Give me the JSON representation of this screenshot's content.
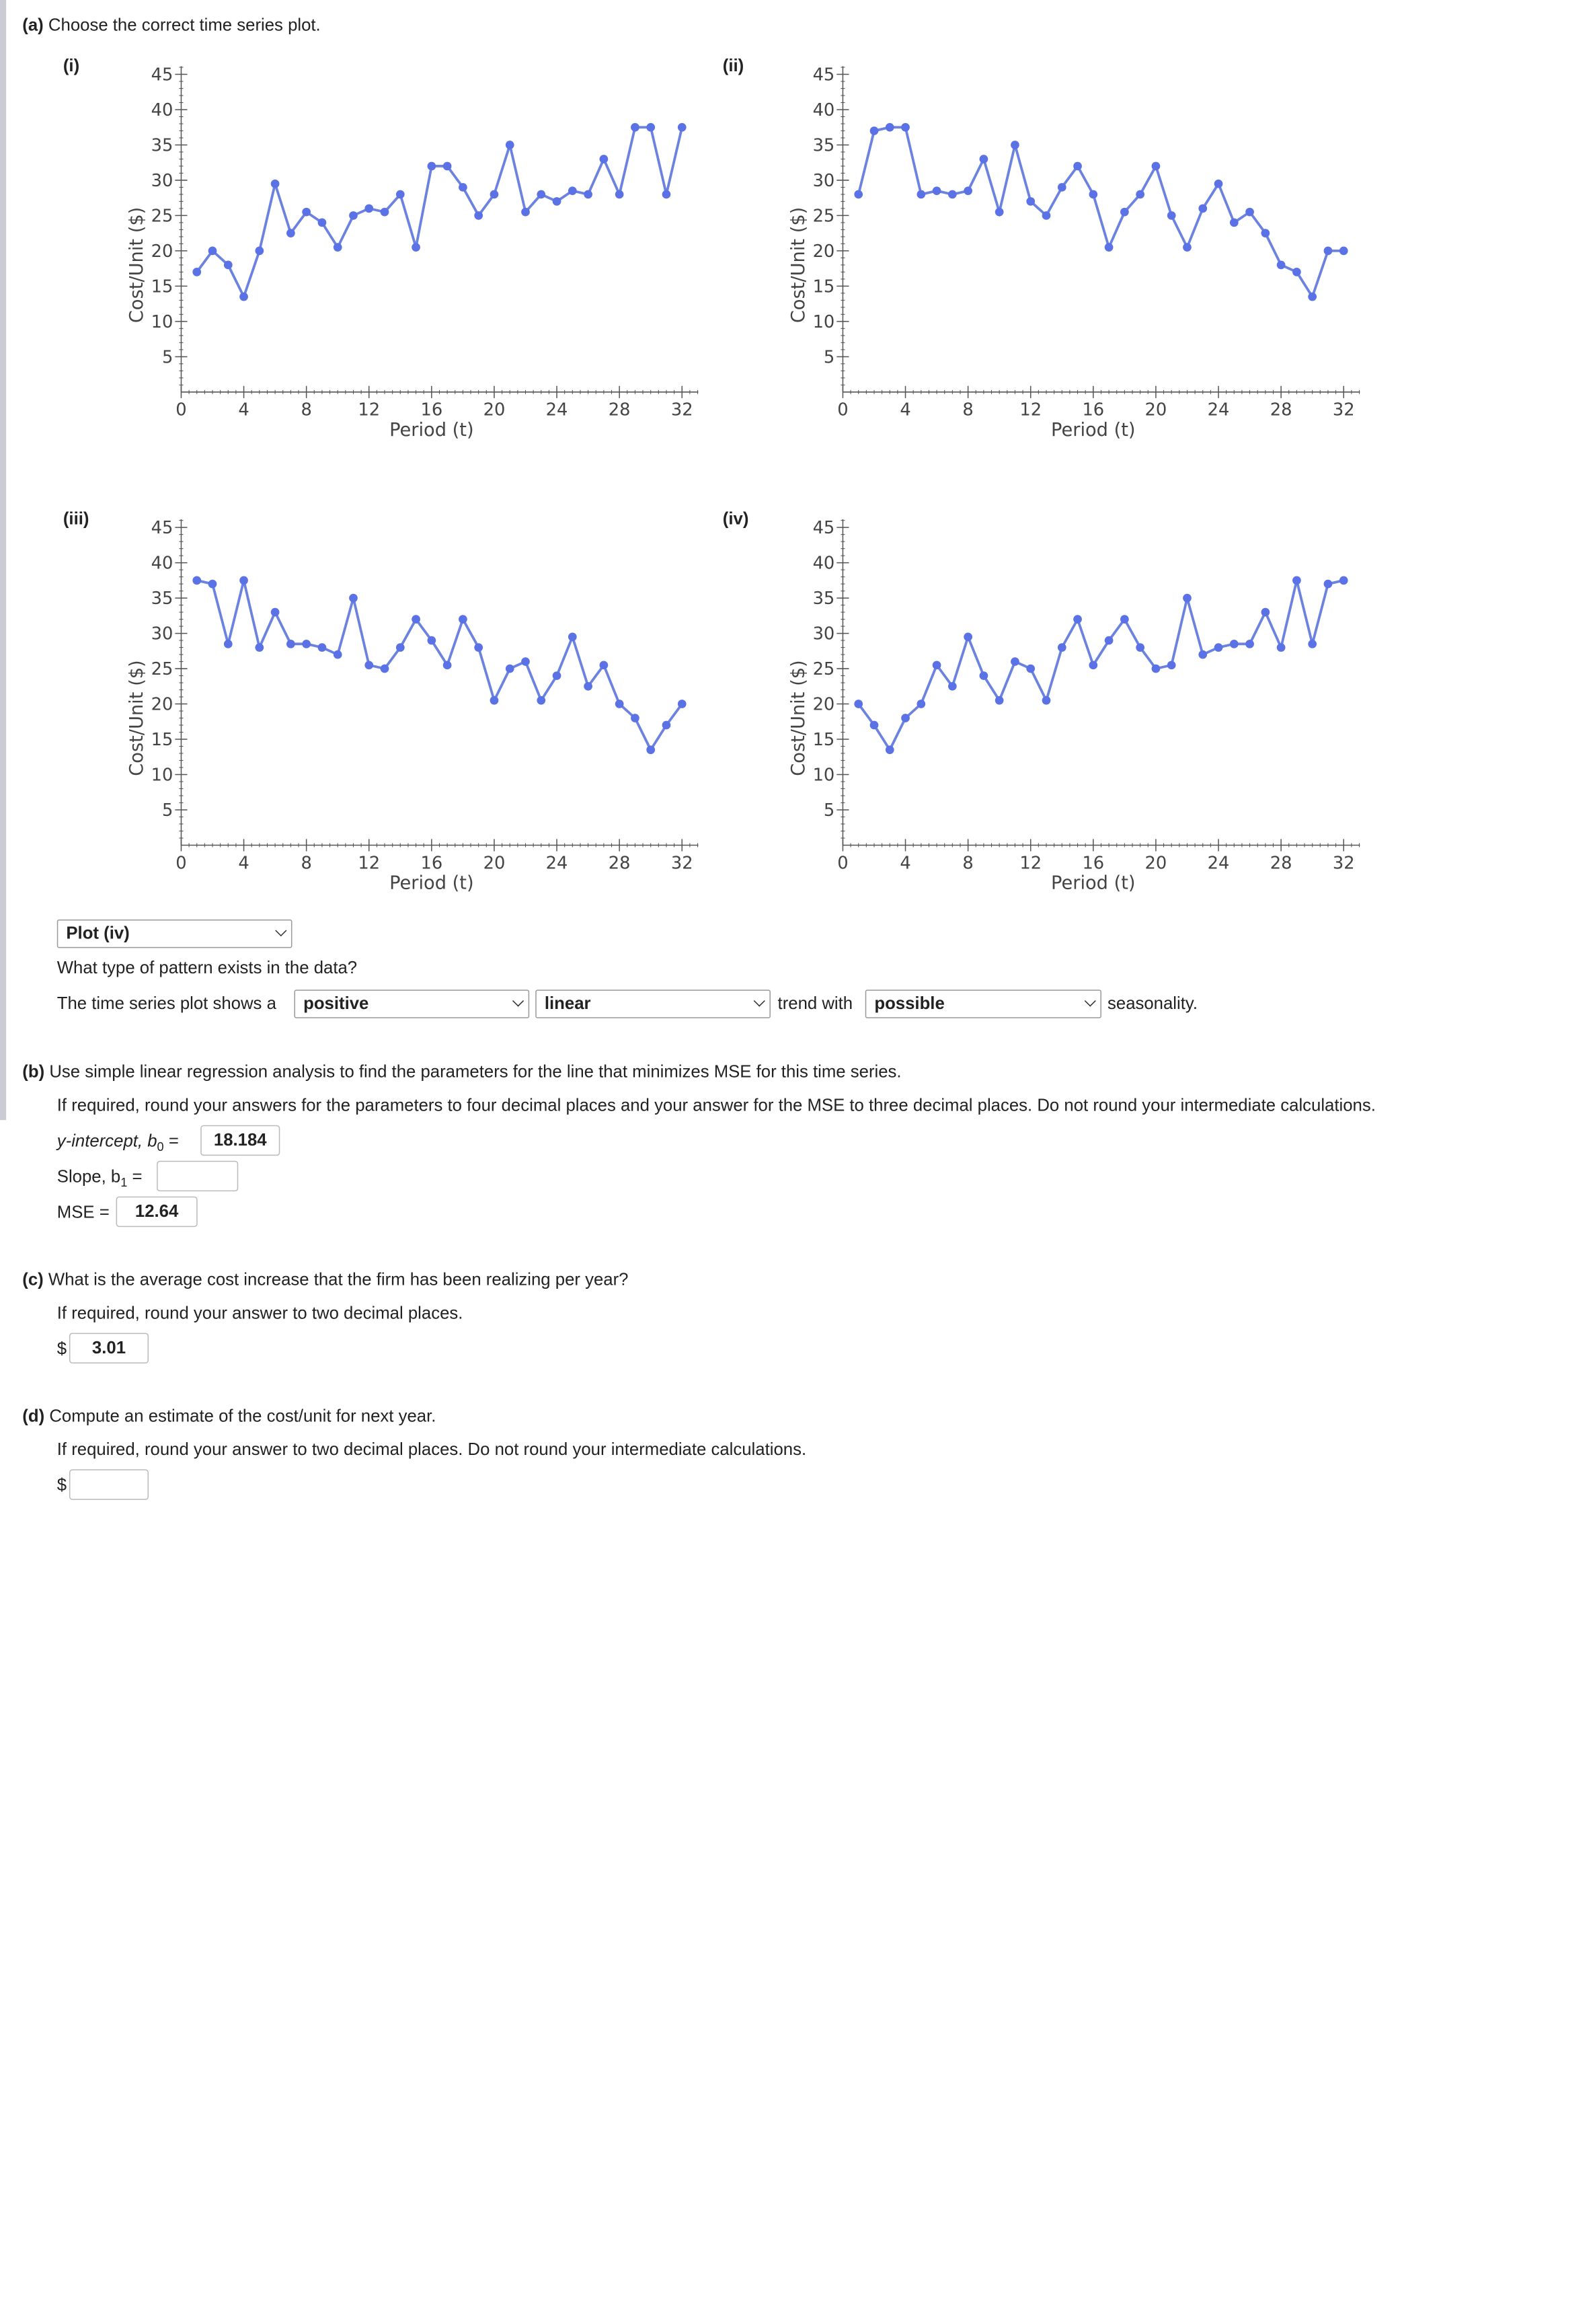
{
  "part_a": {
    "prompt_label": "(a)",
    "prompt": "Choose the correct time series plot."
  },
  "plots": [
    {
      "label": "(i)",
      "ylabel": "Cost/Unit ($)",
      "xlabel": "Period (t)"
    },
    {
      "label": "(ii)",
      "ylabel": "Cost/Unit ($)",
      "xlabel": "Period (t)"
    },
    {
      "label": "(iii)",
      "ylabel": "Cost/Unit ($)",
      "xlabel": "Period (t)"
    },
    {
      "label": "(iv)",
      "ylabel": "Cost/Unit ($)",
      "xlabel": "Period (t)"
    }
  ],
  "chart_data": [
    {
      "type": "line",
      "name": "(i)",
      "xlabel": "Period (t)",
      "ylabel": "Cost/Unit ($)",
      "xlim": [
        0,
        33
      ],
      "ylim": [
        0,
        45
      ],
      "xticks": [
        "0",
        "4",
        "8",
        "12",
        "16",
        "20",
        "24",
        "28",
        "32"
      ],
      "yticks": [
        "5",
        "10",
        "15",
        "20",
        "25",
        "30",
        "35",
        "40",
        "45"
      ],
      "x": [
        1,
        2,
        3,
        4,
        5,
        6,
        7,
        8,
        9,
        10,
        11,
        12,
        13,
        14,
        15,
        16,
        17,
        18,
        19,
        20,
        21,
        22,
        23,
        24,
        25,
        26,
        27,
        28,
        29,
        30,
        31,
        32
      ],
      "y": [
        17,
        20,
        18,
        13.5,
        20,
        29.5,
        22.5,
        25.5,
        24,
        20.5,
        25,
        26,
        25.5,
        28,
        20.5,
        32,
        32,
        29,
        25,
        28,
        35,
        25.5,
        28,
        27,
        28.5,
        28,
        33,
        28,
        37.5,
        37.5,
        28,
        37.5
      ]
    },
    {
      "type": "line",
      "name": "(ii)",
      "xlabel": "Period (t)",
      "ylabel": "Cost/Unit ($)",
      "xlim": [
        0,
        33
      ],
      "ylim": [
        0,
        45
      ],
      "xticks": [
        "0",
        "4",
        "8",
        "12",
        "16",
        "20",
        "24",
        "28",
        "32"
      ],
      "yticks": [
        "5",
        "10",
        "15",
        "20",
        "25",
        "30",
        "35",
        "40",
        "45"
      ],
      "x": [
        1,
        2,
        3,
        4,
        5,
        6,
        7,
        8,
        9,
        10,
        11,
        12,
        13,
        14,
        15,
        16,
        17,
        18,
        19,
        20,
        21,
        22,
        23,
        24,
        25,
        26,
        27,
        28,
        29,
        30,
        31,
        32
      ],
      "y": [
        28,
        37,
        37.5,
        37.5,
        28,
        28.5,
        28,
        28.5,
        33,
        25.5,
        35,
        27,
        25,
        29,
        32,
        28,
        20.5,
        25.5,
        28,
        32,
        25,
        20.5,
        26,
        29.5,
        24,
        25.5,
        22.5,
        18,
        17,
        13.5,
        20,
        20
      ]
    },
    {
      "type": "line",
      "name": "(iii)",
      "xlabel": "Period (t)",
      "ylabel": "Cost/Unit ($)",
      "xlim": [
        0,
        33
      ],
      "ylim": [
        0,
        45
      ],
      "xticks": [
        "0",
        "4",
        "8",
        "12",
        "16",
        "20",
        "24",
        "28",
        "32"
      ],
      "yticks": [
        "5",
        "10",
        "15",
        "20",
        "25",
        "30",
        "35",
        "40",
        "45"
      ],
      "x": [
        1,
        2,
        3,
        4,
        5,
        6,
        7,
        8,
        9,
        10,
        11,
        12,
        13,
        14,
        15,
        16,
        17,
        18,
        19,
        20,
        21,
        22,
        23,
        24,
        25,
        26,
        27,
        28,
        29,
        30,
        31,
        32
      ],
      "y": [
        37.5,
        37,
        28.5,
        37.5,
        28,
        33,
        28.5,
        28.5,
        28,
        27,
        35,
        25.5,
        25,
        28,
        32,
        29,
        25.5,
        32,
        28,
        20.5,
        25,
        26,
        20.5,
        24,
        29.5,
        22.5,
        25.5,
        20,
        18,
        13.5,
        17,
        20
      ]
    },
    {
      "type": "line",
      "name": "(iv)",
      "xlabel": "Period (t)",
      "ylabel": "Cost/Unit ($)",
      "xlim": [
        0,
        33
      ],
      "ylim": [
        0,
        45
      ],
      "xticks": [
        "0",
        "4",
        "8",
        "12",
        "16",
        "20",
        "24",
        "28",
        "32"
      ],
      "yticks": [
        "5",
        "10",
        "15",
        "20",
        "25",
        "30",
        "35",
        "40",
        "45"
      ],
      "x": [
        1,
        2,
        3,
        4,
        5,
        6,
        7,
        8,
        9,
        10,
        11,
        12,
        13,
        14,
        15,
        16,
        17,
        18,
        19,
        20,
        21,
        22,
        23,
        24,
        25,
        26,
        27,
        28,
        29,
        30,
        31,
        32
      ],
      "y": [
        20,
        17,
        13.5,
        18,
        20,
        25.5,
        22.5,
        29.5,
        24,
        20.5,
        26,
        25,
        20.5,
        28,
        32,
        25.5,
        29,
        32,
        28,
        25,
        25.5,
        35,
        27,
        28,
        28.5,
        28.5,
        33,
        28,
        37.5,
        28.5,
        37,
        37.5
      ]
    }
  ],
  "colors": {
    "line": "#6b82e0",
    "marker": "#5a72e6",
    "axis": "#555555"
  },
  "selected_plot": "Plot (iv)",
  "pattern": {
    "question": "What type of pattern exists in the data?",
    "lead": "The time series plot shows a",
    "trend_dir": "positive",
    "trend_type": "linear",
    "mid": "trend with",
    "seasonality": "possible",
    "tail": "seasonality."
  },
  "part_b": {
    "label": "(b)",
    "prompt": "Use simple linear regression analysis to find the parameters for the line that minimizes MSE for this time series.",
    "note": "If required, round your answers for the parameters to four decimal places and your answer for the MSE to three decimal places. Do not round your intermediate calculations.",
    "intercept_label": "y-intercept, b",
    "intercept_sub": "0",
    "intercept_eq": "=",
    "intercept_value": "18.184",
    "slope_label": "Slope, b",
    "slope_sub": "1",
    "slope_eq": "=",
    "slope_value": "",
    "mse_label": "MSE =",
    "mse_value": "12.64"
  },
  "part_c": {
    "label": "(c)",
    "prompt": "What is the average cost increase that the firm has been realizing per year?",
    "note": "If required, round your answer to two decimal places.",
    "currency": "$",
    "value": "3.01"
  },
  "part_d": {
    "label": "(d)",
    "prompt": "Compute an estimate of the cost/unit for next year.",
    "note": "If required, round your answer to two decimal places. Do not round your intermediate calculations.",
    "currency": "$",
    "value": ""
  }
}
